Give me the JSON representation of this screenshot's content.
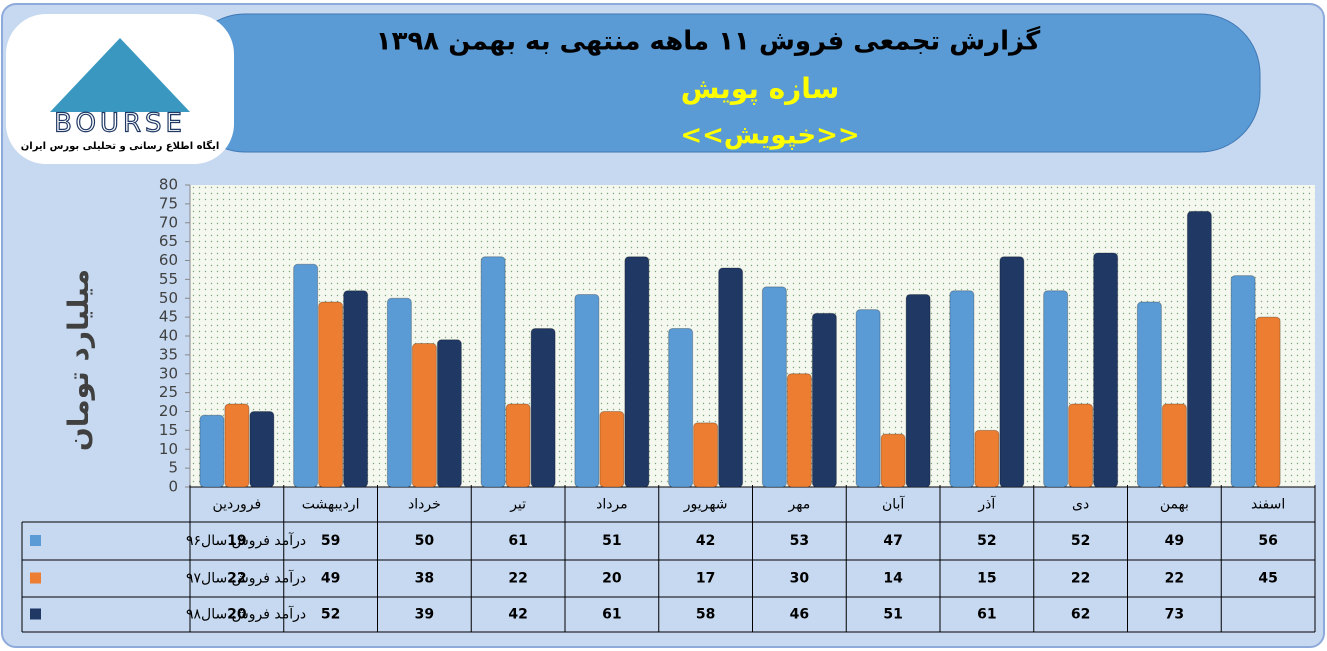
{
  "logo": {
    "name": "BOURSE",
    "tagline": "ایگاه اطلاع رسانی و تحلیلی بورس ایران"
  },
  "chart_data": {
    "type": "bar",
    "title": "گزارش تجمعی فروش  ۱۱ ماهه منتهی به بهمن ۱۳۹۸",
    "subtitle": "سازه پویش",
    "symbol": "<<خپویش>>",
    "y_label": "میلیارد تومان",
    "categories": [
      "فروردین",
      "اردیبهشت",
      "خرداد",
      "تیر",
      "مرداد",
      "شهریور",
      "مهر",
      "آبان",
      "آذر",
      "دی",
      "بهمن",
      "اسفند"
    ],
    "series": [
      {
        "name": "درآمد فروش سال۹۶",
        "color": "#5b9bd5",
        "values": [
          19,
          59,
          50,
          61,
          51,
          42,
          53,
          47,
          52,
          52,
          49,
          56
        ]
      },
      {
        "name": "درآمد فروش سال۹۷",
        "color": "#ed7d31",
        "values": [
          22,
          49,
          38,
          22,
          20,
          17,
          30,
          14,
          15,
          22,
          22,
          45
        ]
      },
      {
        "name": "درآمد فروش سال۹۸",
        "color": "#1f3864",
        "values": [
          20,
          52,
          39,
          42,
          61,
          58,
          46,
          51,
          61,
          62,
          73,
          null
        ]
      }
    ],
    "ylim": [
      0,
      80
    ],
    "yticks": [
      0,
      5,
      10,
      15,
      20,
      25,
      30,
      35,
      40,
      45,
      50,
      55,
      60,
      65,
      70,
      75,
      80
    ],
    "grid": false,
    "legend": "table"
  }
}
